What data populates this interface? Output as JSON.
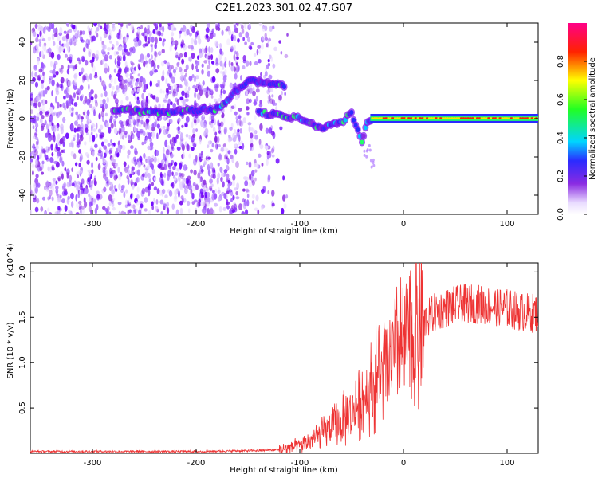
{
  "title": "C2E1.2023.301.02.47.G07",
  "chart_data": [
    {
      "type": "heatmap",
      "xlabel": "Height of straight line (km)",
      "ylabel": "Frequency (Hz)",
      "xlim": [
        -360,
        130
      ],
      "ylim": [
        -50,
        50
      ],
      "xticks": [
        -300,
        -200,
        -100,
        0,
        100
      ],
      "yticks": [
        -40,
        -20,
        0,
        20,
        40
      ],
      "colorbar": {
        "label": "Normalized spectral amplitude",
        "range": [
          0,
          1
        ],
        "ticks": [
          0.0,
          0.2,
          0.4,
          0.6,
          0.8
        ],
        "tick_labels": [
          "0.0",
          "0.2",
          "0.4",
          "0.6",
          "0.8"
        ],
        "colormap": "rainbow (white → violet → blue → cyan → green → yellow → red → magenta)"
      },
      "ridge": {
        "description": "Dominant narrowband line near 0 Hz, strongest for heights above about -30 km",
        "points": [
          {
            "x": -280,
            "y": 5
          },
          {
            "x": -240,
            "y": 3
          },
          {
            "x": -180,
            "y": 5
          },
          {
            "x": -150,
            "y": 20
          },
          {
            "x": -135,
            "y": 19
          },
          {
            "x": -113,
            "y": 17
          },
          {
            "x": -140,
            "y": 3
          },
          {
            "x": -120,
            "y": 2
          },
          {
            "x": -100,
            "y": 0
          },
          {
            "x": -80,
            "y": -5
          },
          {
            "x": -60,
            "y": -2
          },
          {
            "x": -50,
            "y": 3
          },
          {
            "x": -40,
            "y": -12
          },
          {
            "x": -35,
            "y": -2
          },
          {
            "x": -20,
            "y": 2
          },
          {
            "x": 0,
            "y": 0
          },
          {
            "x": 50,
            "y": 0
          },
          {
            "x": 100,
            "y": 0
          },
          {
            "x": 130,
            "y": 0
          }
        ]
      }
    },
    {
      "type": "line",
      "xlabel": "Height of straight line (km)",
      "ylabel": "SNR (10 * v/v)",
      "scale_label": "(x10^4)",
      "xlim": [
        -360,
        130
      ],
      "ylim": [
        0,
        2.1
      ],
      "xticks": [
        -300,
        -200,
        -100,
        0,
        100
      ],
      "yticks": [
        0.5,
        1.0,
        1.5,
        2.0
      ],
      "ytick_labels": [
        "0.5",
        "1.0",
        "1.5",
        "2.0"
      ],
      "series": [
        {
          "color": "#ee3333",
          "x": [
            -360,
            -300,
            -200,
            -140,
            -120,
            -100,
            -80,
            -60,
            -50,
            -40,
            -30,
            -20,
            -10,
            0,
            10,
            20,
            30,
            40,
            50,
            60,
            70,
            80,
            90,
            100,
            110,
            120,
            130
          ],
          "values": [
            0.02,
            0.02,
            0.02,
            0.03,
            0.04,
            0.08,
            0.2,
            0.35,
            0.45,
            0.6,
            0.75,
            0.9,
            1.05,
            1.2,
            1.35,
            1.45,
            1.55,
            1.6,
            1.63,
            1.65,
            1.65,
            1.63,
            1.62,
            1.6,
            1.57,
            1.55,
            1.55
          ]
        }
      ]
    }
  ]
}
